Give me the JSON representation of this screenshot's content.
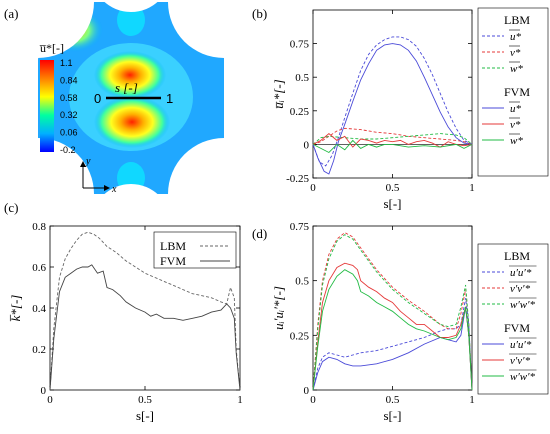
{
  "panels": {
    "a": {
      "label": "(a)"
    },
    "b": {
      "label": "(b)"
    },
    "c": {
      "label": "(c)"
    },
    "d": {
      "label": "(d)"
    }
  },
  "contour": {
    "colorbar_label": "u̅*[-]",
    "colorbar_ticks": [
      "1.1",
      "0.84",
      "0.58",
      "0.32",
      "0.06",
      "-0.2"
    ],
    "line_label": "s [-]",
    "line_start": "0",
    "line_end": "1",
    "axis_y": "y",
    "axis_x": "x",
    "colors": [
      "#0000ff",
      "#00b0ff",
      "#00ffa0",
      "#ffff00",
      "#ff8000",
      "#ff0000"
    ]
  },
  "chart_data": [
    {
      "id": "b",
      "type": "line",
      "ylabel": "u̅ᵢ*[-]",
      "xlabel": "s[-]",
      "xlim": [
        0,
        1
      ],
      "ylim": [
        -0.25,
        1.0
      ],
      "xticks": [
        {
          "v": 0,
          "t": "0"
        },
        {
          "v": 0.5,
          "t": "0.5"
        },
        {
          "v": 1,
          "t": "1"
        }
      ],
      "yticks": [
        {
          "v": -0.25,
          "t": "-0.25"
        },
        {
          "v": 0,
          "t": "0"
        },
        {
          "v": 0.25,
          "t": "0.25"
        },
        {
          "v": 0.5,
          "t": "0.5"
        },
        {
          "v": 0.75,
          "t": "0.75"
        }
      ],
      "legend_groups": [
        {
          "title": "LBM",
          "entries": [
            {
              "name": "u*",
              "color": "#4a4ad8",
              "dash": true
            },
            {
              "name": "v*",
              "color": "#e53a3a",
              "dash": true
            },
            {
              "name": "w*",
              "color": "#22bb44",
              "dash": true
            }
          ]
        },
        {
          "title": "FVM",
          "entries": [
            {
              "name": "u*",
              "color": "#4a4ad8",
              "dash": false
            },
            {
              "name": "v*",
              "color": "#e53a3a",
              "dash": false
            },
            {
              "name": "w*",
              "color": "#22bb44",
              "dash": false
            }
          ]
        }
      ],
      "series": [
        {
          "color": "#4a4ad8",
          "dash": true,
          "x": [
            0,
            0.04,
            0.08,
            0.12,
            0.16,
            0.2,
            0.25,
            0.3,
            0.35,
            0.4,
            0.45,
            0.5,
            0.55,
            0.6,
            0.65,
            0.7,
            0.75,
            0.8,
            0.85,
            0.9,
            0.95,
            1.0
          ],
          "y": [
            0,
            -0.13,
            -0.16,
            -0.08,
            0.05,
            0.2,
            0.38,
            0.55,
            0.67,
            0.74,
            0.78,
            0.8,
            0.8,
            0.78,
            0.73,
            0.64,
            0.52,
            0.38,
            0.24,
            0.12,
            0.03,
            0.0
          ]
        },
        {
          "color": "#e53a3a",
          "dash": true,
          "x": [
            0,
            0.05,
            0.1,
            0.15,
            0.2,
            0.3,
            0.4,
            0.5,
            0.6,
            0.7,
            0.8,
            0.9,
            0.95,
            1.0
          ],
          "y": [
            0,
            0.02,
            0.06,
            0.1,
            0.12,
            0.11,
            0.09,
            0.08,
            0.06,
            0.05,
            0.04,
            0.03,
            0.02,
            0
          ]
        },
        {
          "color": "#22bb44",
          "dash": true,
          "x": [
            0,
            0.05,
            0.1,
            0.2,
            0.3,
            0.4,
            0.5,
            0.6,
            0.7,
            0.8,
            0.9,
            0.95,
            1.0
          ],
          "y": [
            0,
            0.05,
            0.06,
            0.05,
            0.04,
            0.04,
            0.05,
            0.06,
            0.07,
            0.08,
            0.07,
            0.05,
            0
          ]
        },
        {
          "color": "#4a4ad8",
          "dash": false,
          "x": [
            0,
            0.03,
            0.07,
            0.1,
            0.13,
            0.16,
            0.2,
            0.25,
            0.3,
            0.35,
            0.4,
            0.45,
            0.5,
            0.55,
            0.6,
            0.65,
            0.7,
            0.75,
            0.8,
            0.85,
            0.9,
            0.95,
            1.0
          ],
          "y": [
            0,
            -0.1,
            -0.2,
            -0.22,
            -0.12,
            0.02,
            0.15,
            0.32,
            0.48,
            0.6,
            0.7,
            0.74,
            0.75,
            0.74,
            0.7,
            0.62,
            0.5,
            0.37,
            0.24,
            0.13,
            0.05,
            0.01,
            0
          ]
        },
        {
          "color": "#e53a3a",
          "dash": false,
          "x": [
            0,
            0.05,
            0.1,
            0.15,
            0.2,
            0.25,
            0.3,
            0.35,
            0.4,
            0.45,
            0.5,
            0.55,
            0.6,
            0.65,
            0.7,
            0.75,
            0.8,
            0.85,
            0.9,
            0.95,
            1.0
          ],
          "y": [
            0,
            0.03,
            0.08,
            0.03,
            0.06,
            -0.02,
            0.04,
            0.03,
            0.01,
            0.03,
            0.02,
            0.03,
            0.0,
            0.02,
            0.03,
            0.01,
            -0.02,
            0.02,
            0.0,
            -0.01,
            0
          ]
        },
        {
          "color": "#22bb44",
          "dash": false,
          "x": [
            0,
            0.05,
            0.1,
            0.15,
            0.2,
            0.25,
            0.3,
            0.35,
            0.4,
            0.45,
            0.5,
            0.6,
            0.7,
            0.8,
            0.9,
            0.95,
            1.0
          ],
          "y": [
            0,
            -0.03,
            -0.06,
            0.0,
            -0.04,
            0.03,
            -0.03,
            0.0,
            -0.02,
            0.0,
            0.0,
            -0.02,
            -0.01,
            -0.02,
            0.0,
            -0.03,
            0
          ]
        }
      ]
    },
    {
      "id": "c",
      "type": "line",
      "ylabel": "k̅*[-]",
      "xlabel": "s[-]",
      "xlim": [
        0,
        1
      ],
      "ylim": [
        0,
        0.8
      ],
      "xticks": [
        {
          "v": 0,
          "t": "0"
        },
        {
          "v": 0.5,
          "t": "0.5"
        },
        {
          "v": 1,
          "t": "1"
        }
      ],
      "yticks": [
        {
          "v": 0,
          "t": "0"
        },
        {
          "v": 0.2,
          "t": "0.2"
        },
        {
          "v": 0.4,
          "t": "0.4"
        },
        {
          "v": 0.6,
          "t": "0.6"
        },
        {
          "v": 0.8,
          "t": "0.8"
        }
      ],
      "legend": [
        {
          "name": "LBM",
          "color": "#666666",
          "dash": true
        },
        {
          "name": "FVM",
          "color": "#444444",
          "dash": false
        }
      ],
      "series": [
        {
          "name": "LBM",
          "color": "#666666",
          "dash": true,
          "x": [
            0,
            0.02,
            0.05,
            0.08,
            0.11,
            0.14,
            0.17,
            0.2,
            0.23,
            0.26,
            0.3,
            0.35,
            0.4,
            0.45,
            0.5,
            0.55,
            0.6,
            0.65,
            0.7,
            0.75,
            0.8,
            0.85,
            0.9,
            0.93,
            0.95,
            0.97,
            0.98,
            1.0
          ],
          "y": [
            0,
            0.3,
            0.55,
            0.64,
            0.69,
            0.73,
            0.76,
            0.77,
            0.76,
            0.74,
            0.7,
            0.67,
            0.63,
            0.6,
            0.57,
            0.55,
            0.53,
            0.51,
            0.49,
            0.47,
            0.46,
            0.45,
            0.43,
            0.42,
            0.5,
            0.45,
            0.2,
            0
          ]
        },
        {
          "name": "FVM",
          "color": "#444444",
          "dash": false,
          "x": [
            0,
            0.02,
            0.05,
            0.08,
            0.11,
            0.14,
            0.17,
            0.2,
            0.22,
            0.25,
            0.28,
            0.3,
            0.33,
            0.37,
            0.4,
            0.45,
            0.5,
            0.53,
            0.56,
            0.6,
            0.65,
            0.7,
            0.75,
            0.8,
            0.85,
            0.9,
            0.93,
            0.95,
            0.97,
            0.98,
            1.0
          ],
          "y": [
            0,
            0.25,
            0.48,
            0.55,
            0.57,
            0.59,
            0.6,
            0.6,
            0.61,
            0.57,
            0.58,
            0.5,
            0.49,
            0.46,
            0.43,
            0.4,
            0.38,
            0.36,
            0.37,
            0.35,
            0.35,
            0.34,
            0.35,
            0.36,
            0.38,
            0.39,
            0.42,
            0.4,
            0.35,
            0.18,
            0
          ]
        }
      ]
    },
    {
      "id": "d",
      "type": "line",
      "ylabel": "uᵢ′uᵢ′*[-]",
      "xlabel": "s[-]",
      "xlim": [
        0,
        1
      ],
      "ylim": [
        0,
        0.75
      ],
      "xticks": [
        {
          "v": 0,
          "t": "0"
        },
        {
          "v": 0.5,
          "t": "0.5"
        },
        {
          "v": 1,
          "t": "1"
        }
      ],
      "yticks": [
        {
          "v": 0,
          "t": "0"
        },
        {
          "v": 0.25,
          "t": "0.25"
        },
        {
          "v": 0.5,
          "t": "0.5"
        },
        {
          "v": 0.75,
          "t": "0.75"
        }
      ],
      "legend_groups": [
        {
          "title": "LBM",
          "entries": [
            {
              "name": "u′u′*",
              "color": "#4a4ad8",
              "dash": true
            },
            {
              "name": "v′v′*",
              "color": "#e53a3a",
              "dash": true
            },
            {
              "name": "w′w′*",
              "color": "#22bb44",
              "dash": true
            }
          ]
        },
        {
          "title": "FVM",
          "entries": [
            {
              "name": "u′u′*",
              "color": "#4a4ad8",
              "dash": false
            },
            {
              "name": "v′v′*",
              "color": "#e53a3a",
              "dash": false
            },
            {
              "name": "w′w′*",
              "color": "#22bb44",
              "dash": false
            }
          ]
        }
      ],
      "series": [
        {
          "color": "#4a4ad8",
          "dash": true,
          "x": [
            0,
            0.03,
            0.06,
            0.1,
            0.15,
            0.2,
            0.25,
            0.3,
            0.4,
            0.5,
            0.6,
            0.7,
            0.8,
            0.85,
            0.9,
            0.93,
            0.96,
            0.98,
            1.0
          ],
          "y": [
            0,
            0.1,
            0.15,
            0.17,
            0.16,
            0.15,
            0.16,
            0.17,
            0.18,
            0.2,
            0.22,
            0.24,
            0.27,
            0.28,
            0.28,
            0.3,
            0.42,
            0.3,
            0
          ]
        },
        {
          "color": "#e53a3a",
          "dash": true,
          "x": [
            0,
            0.03,
            0.06,
            0.1,
            0.15,
            0.2,
            0.25,
            0.3,
            0.35,
            0.4,
            0.5,
            0.6,
            0.7,
            0.8,
            0.85,
            0.9,
            0.93,
            0.96,
            0.98,
            1.0
          ],
          "y": [
            0,
            0.3,
            0.5,
            0.62,
            0.69,
            0.72,
            0.7,
            0.65,
            0.6,
            0.55,
            0.47,
            0.41,
            0.36,
            0.3,
            0.28,
            0.28,
            0.35,
            0.46,
            0.3,
            0
          ]
        },
        {
          "color": "#22bb44",
          "dash": true,
          "x": [
            0,
            0.03,
            0.06,
            0.1,
            0.15,
            0.2,
            0.25,
            0.3,
            0.35,
            0.4,
            0.5,
            0.6,
            0.7,
            0.8,
            0.85,
            0.9,
            0.93,
            0.96,
            0.98,
            1.0
          ],
          "y": [
            0,
            0.28,
            0.48,
            0.6,
            0.68,
            0.71,
            0.69,
            0.64,
            0.59,
            0.54,
            0.46,
            0.4,
            0.35,
            0.3,
            0.29,
            0.3,
            0.38,
            0.48,
            0.3,
            0
          ]
        },
        {
          "color": "#4a4ad8",
          "dash": false,
          "x": [
            0,
            0.03,
            0.06,
            0.1,
            0.15,
            0.2,
            0.25,
            0.3,
            0.4,
            0.5,
            0.6,
            0.7,
            0.8,
            0.85,
            0.9,
            0.93,
            0.96,
            0.98,
            1.0
          ],
          "y": [
            0,
            0.08,
            0.13,
            0.15,
            0.14,
            0.12,
            0.11,
            0.11,
            0.12,
            0.14,
            0.17,
            0.21,
            0.24,
            0.23,
            0.22,
            0.25,
            0.38,
            0.25,
            0
          ]
        },
        {
          "color": "#e53a3a",
          "dash": false,
          "x": [
            0,
            0.03,
            0.06,
            0.1,
            0.15,
            0.2,
            0.25,
            0.28,
            0.3,
            0.35,
            0.4,
            0.45,
            0.5,
            0.55,
            0.6,
            0.65,
            0.7,
            0.8,
            0.85,
            0.9,
            0.93,
            0.96,
            0.98,
            1.0
          ],
          "y": [
            0,
            0.22,
            0.4,
            0.5,
            0.56,
            0.58,
            0.57,
            0.55,
            0.5,
            0.47,
            0.45,
            0.42,
            0.4,
            0.36,
            0.33,
            0.3,
            0.3,
            0.24,
            0.24,
            0.25,
            0.3,
            0.38,
            0.25,
            0
          ]
        },
        {
          "color": "#22bb44",
          "dash": false,
          "x": [
            0,
            0.03,
            0.06,
            0.1,
            0.15,
            0.2,
            0.25,
            0.28,
            0.3,
            0.35,
            0.4,
            0.45,
            0.5,
            0.55,
            0.6,
            0.65,
            0.7,
            0.8,
            0.85,
            0.9,
            0.93,
            0.96,
            0.98,
            1.0
          ],
          "y": [
            0,
            0.2,
            0.36,
            0.46,
            0.52,
            0.55,
            0.53,
            0.5,
            0.45,
            0.43,
            0.4,
            0.38,
            0.36,
            0.33,
            0.3,
            0.28,
            0.27,
            0.24,
            0.23,
            0.24,
            0.28,
            0.38,
            0.25,
            0
          ]
        }
      ]
    }
  ]
}
